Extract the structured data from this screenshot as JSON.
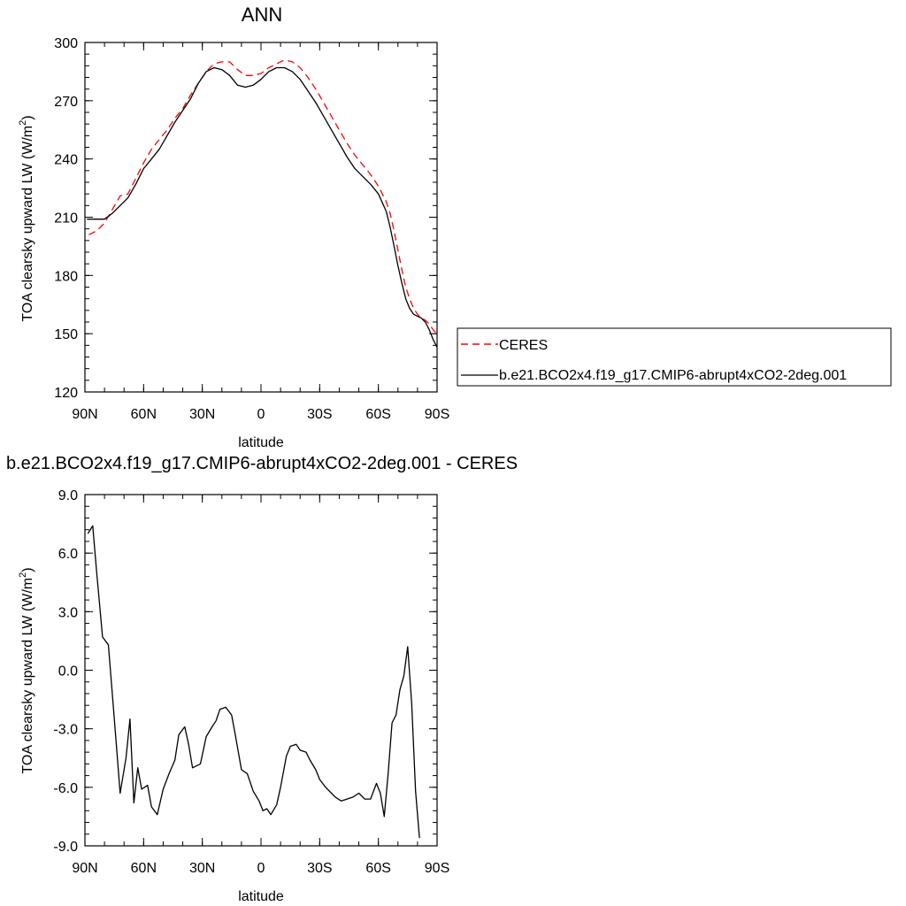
{
  "chart_data": [
    {
      "type": "line",
      "title": "ANN",
      "xlabel": "latitude",
      "ylabel": "TOA clearsky upward LW (W/m",
      "ylabel_sup": "2",
      "ylabel_end": ")",
      "xlim": [
        90,
        -90
      ],
      "ylim": [
        120,
        300
      ],
      "xticks": [
        {
          "value": 90,
          "label": "90N"
        },
        {
          "value": 60,
          "label": "60N"
        },
        {
          "value": 30,
          "label": "30N"
        },
        {
          "value": 0,
          "label": "0"
        },
        {
          "value": -30,
          "label": "30S"
        },
        {
          "value": -60,
          "label": "60S"
        },
        {
          "value": -90,
          "label": "90S"
        }
      ],
      "yticks": [
        {
          "value": 300,
          "label": "300"
        },
        {
          "value": 270,
          "label": "270"
        },
        {
          "value": 240,
          "label": "240"
        },
        {
          "value": 210,
          "label": "210"
        },
        {
          "value": 180,
          "label": "180"
        },
        {
          "value": 150,
          "label": "150"
        },
        {
          "value": 120,
          "label": "120"
        }
      ],
      "legend_placement": "right",
      "series": [
        {
          "name": "CERES",
          "color": "#ff0000",
          "dash": true,
          "x": [
            88,
            84,
            80,
            76,
            72,
            68,
            64,
            60,
            56,
            52,
            48,
            44,
            40,
            36,
            32,
            28,
            24,
            20,
            16,
            12,
            8,
            4,
            0,
            -4,
            -8,
            -12,
            -16,
            -20,
            -24,
            -28,
            -32,
            -36,
            -40,
            -44,
            -48,
            -52,
            -56,
            -60,
            -64,
            -66,
            -68,
            -70,
            -72,
            -74,
            -76,
            -78,
            -80,
            -82,
            -84,
            -86,
            -88,
            -90
          ],
          "y": [
            201,
            203,
            207,
            214,
            221,
            222,
            230,
            238,
            245,
            250,
            255,
            261,
            266,
            273,
            279,
            285,
            289,
            290,
            290,
            286,
            283,
            283,
            284,
            287,
            289,
            291,
            290,
            287,
            282,
            276,
            269,
            262,
            255,
            248,
            242,
            237,
            232,
            226,
            218,
            212,
            203,
            193,
            183,
            174,
            168,
            163,
            160,
            158,
            157,
            155,
            152,
            150
          ]
        },
        {
          "name": "b.e21.BCO2x4.f19_g17.CMIP6-abrupt4xCO2-2deg.001",
          "color": "#000000",
          "dash": false,
          "x": [
            89,
            84,
            80,
            76,
            72,
            68,
            64,
            60,
            56,
            52,
            48,
            44,
            40,
            36,
            32,
            28,
            24,
            20,
            16,
            12,
            8,
            4,
            0,
            -4,
            -8,
            -12,
            -16,
            -20,
            -24,
            -28,
            -32,
            -36,
            -40,
            -44,
            -48,
            -52,
            -56,
            -60,
            -64,
            -66,
            -68,
            -70,
            -72,
            -74,
            -76,
            -78,
            -80,
            -82,
            -84,
            -86,
            -88,
            -90
          ],
          "y": [
            209,
            209,
            209,
            212,
            216,
            220,
            227,
            235,
            240,
            245,
            252,
            259,
            265,
            271,
            279,
            285,
            287,
            286,
            283,
            278,
            277,
            278,
            281,
            285,
            287,
            287,
            285,
            281,
            275,
            269,
            262,
            255,
            248,
            241,
            235,
            231,
            227,
            222,
            213,
            205,
            195,
            185,
            176,
            168,
            163,
            160,
            159,
            158,
            156,
            152,
            147,
            143
          ]
        }
      ]
    },
    {
      "type": "line",
      "title": "b.e21.BCO2x4.f19_g17.CMIP6-abrupt4xCO2-2deg.001 - CERES",
      "xlabel": "latitude",
      "ylabel": "TOA clearsky upward LW (W/m",
      "ylabel_sup": "2",
      "ylabel_end": ")",
      "xlim": [
        90,
        -90
      ],
      "ylim": [
        -9.0,
        9.0
      ],
      "xticks": [
        {
          "value": 90,
          "label": "90N"
        },
        {
          "value": 60,
          "label": "60N"
        },
        {
          "value": 30,
          "label": "30N"
        },
        {
          "value": 0,
          "label": "0"
        },
        {
          "value": -30,
          "label": "30S"
        },
        {
          "value": -60,
          "label": "60S"
        },
        {
          "value": -90,
          "label": "90S"
        }
      ],
      "yticks": [
        {
          "value": 9.0,
          "label": "9.0"
        },
        {
          "value": 6.0,
          "label": "6.0"
        },
        {
          "value": 3.0,
          "label": "3.0"
        },
        {
          "value": 0.0,
          "label": "0.0"
        },
        {
          "value": -3.0,
          "label": "-3.0"
        },
        {
          "value": -6.0,
          "label": "-6.0"
        },
        {
          "value": -9.0,
          "label": "-9.0"
        }
      ],
      "series": [
        {
          "color": "#000000",
          "dash": false,
          "x": [
            88.5,
            86,
            84,
            81,
            78,
            75,
            72,
            69,
            67,
            65,
            63,
            61,
            58,
            56,
            53,
            50,
            47,
            44,
            42,
            39,
            37,
            35,
            31,
            28,
            25,
            23,
            21,
            18,
            15,
            13,
            10,
            7,
            4,
            1,
            -1,
            -3,
            -5,
            -8,
            -10,
            -13,
            -15,
            -18,
            -20,
            -23,
            -25,
            -28,
            -30,
            -33,
            -36,
            -38,
            -41,
            -44,
            -47,
            -50,
            -53,
            -56,
            -59,
            -61,
            -63,
            -65,
            -67,
            -69,
            -71,
            -73,
            -75,
            -77,
            -79,
            -81,
            -83,
            -85,
            -87,
            -89
          ],
          "y": [
            7.0,
            7.4,
            5.0,
            1.7,
            1.3,
            -2.5,
            -6.3,
            -4.5,
            -2.5,
            -6.8,
            -5.0,
            -6.1,
            -5.9,
            -7.0,
            -7.4,
            -6.1,
            -5.3,
            -4.6,
            -3.3,
            -2.9,
            -3.8,
            -5.0,
            -4.8,
            -3.4,
            -2.9,
            -2.6,
            -2.0,
            -1.9,
            -2.3,
            -3.4,
            -5.1,
            -5.3,
            -6.2,
            -6.7,
            -7.2,
            -7.1,
            -7.4,
            -6.9,
            -6.0,
            -4.4,
            -3.9,
            -3.8,
            -4.1,
            -4.2,
            -4.6,
            -5.1,
            -5.6,
            -6.0,
            -6.3,
            -6.5,
            -6.7,
            -6.6,
            -6.5,
            -6.3,
            -6.6,
            -6.6,
            -5.8,
            -6.3,
            -7.5,
            -5.3,
            -2.7,
            -2.3,
            -1.0,
            -0.3,
            1.2,
            -1.7,
            -6.2,
            -8.6,
            null,
            null,
            null,
            null
          ]
        }
      ]
    }
  ]
}
